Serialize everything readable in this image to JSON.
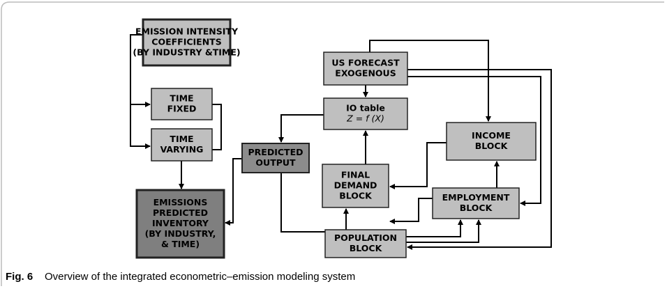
{
  "nodes": [
    {
      "lines": [
        "EMISSION INTENSITY",
        "COEFFICIENTS",
        "(BY INDUSTRY &TIME)"
      ]
    },
    {
      "lines": [
        "TIME",
        "FIXED"
      ]
    },
    {
      "lines": [
        "TIME",
        "VARYING"
      ]
    },
    {
      "lines": [
        "EMISSIONS",
        "PREDICTED",
        "INVENTORY",
        "(BY INDUSTRY,",
        "& TIME)"
      ]
    },
    {
      "lines": [
        "PREDICTED",
        "OUTPUT"
      ]
    },
    {
      "lines": [
        "US FORECAST",
        "EXOGENOUS"
      ]
    },
    {
      "lines": [
        "IO table",
        "Z = f (X)"
      ]
    },
    {
      "lines": [
        "INCOME",
        "BLOCK"
      ]
    },
    {
      "lines": [
        "FINAL",
        "DEMAND",
        "BLOCK"
      ]
    },
    {
      "lines": [
        "EMPLOYMENT",
        "BLOCK"
      ]
    },
    {
      "lines": [
        "POPULATION",
        "BLOCK"
      ]
    }
  ],
  "caption": {
    "label": "Fig. 6",
    "text": "Overview of the integrated econometric–emission modeling system"
  }
}
